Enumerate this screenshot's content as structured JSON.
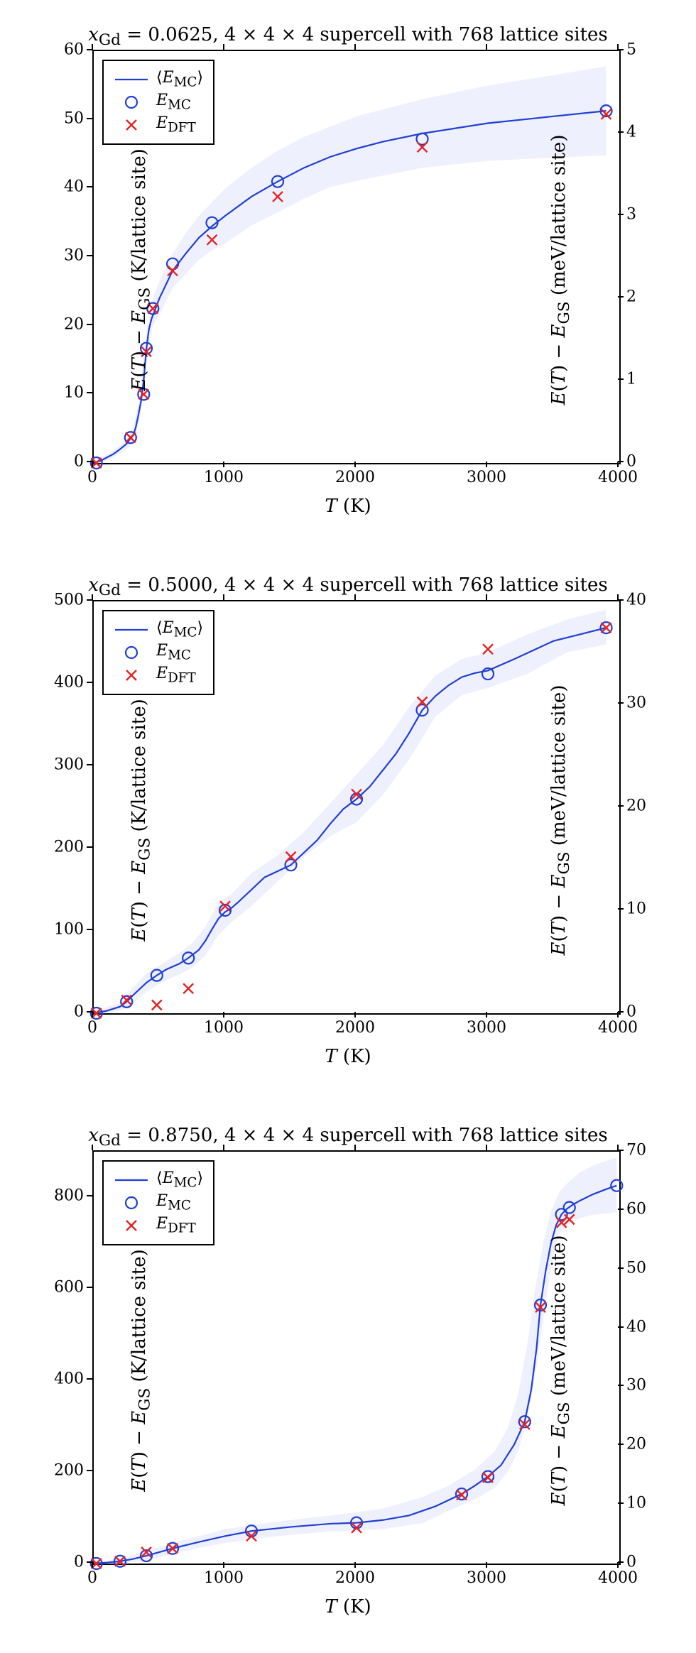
{
  "colors": {
    "line": "#1f3fd6",
    "band": "#b4b9f4",
    "circle": "#1f3fd6",
    "cross": "#e42222",
    "axis": "#000000",
    "bg": "#ffffff"
  },
  "common": {
    "xlabel_html": "<i>T</i> (K)",
    "ylabel_left_html": "<i>E</i>(<i>T</i>) − <i>E</i><sub>GS</sub> (K/lattice site)",
    "ylabel_right_html": "<i>E</i>(<i>T</i>) − <i>E</i><sub>GS</sub> (meV/lattice site)",
    "legend": {
      "l1_html": "⟨<i>E</i><sub>MC</sub>⟩",
      "l2_html": "<i>E</i><sub>MC</sub>",
      "l3_html": "<i>E</i><sub>DFT</sub>"
    },
    "title_fontsize": 26,
    "label_fontsize": 26,
    "tick_fontsize": 22,
    "legend_fontsize": 22,
    "marker_radius": 8,
    "cross_halfsize": 7,
    "line_width": 2.2
  },
  "panels": [
    {
      "id": "p1",
      "title_html": "<i>x</i><sub>Gd</sub> = 0.0625, 4 × 4 × 4 supercell with 768 lattice sites",
      "xlim": [
        0,
        4000
      ],
      "xtick_step": 1000,
      "ylim": [
        0,
        60
      ],
      "ytick_step": 10,
      "y2lim": [
        0,
        5
      ],
      "y2tick_step": 1,
      "line": [
        [
          0,
          0
        ],
        [
          50,
          0.3
        ],
        [
          100,
          0.8
        ],
        [
          150,
          1.3
        ],
        [
          200,
          2.0
        ],
        [
          250,
          2.8
        ],
        [
          280,
          3.6
        ],
        [
          300,
          4.0
        ],
        [
          320,
          5.2
        ],
        [
          340,
          7.0
        ],
        [
          360,
          9.0
        ],
        [
          380,
          12.0
        ],
        [
          400,
          16.5
        ],
        [
          420,
          19.5
        ],
        [
          440,
          21.0
        ],
        [
          460,
          22.0
        ],
        [
          500,
          24.0
        ],
        [
          550,
          26.0
        ],
        [
          600,
          28.0
        ],
        [
          700,
          30.5
        ],
        [
          800,
          32.8
        ],
        [
          900,
          34.5
        ],
        [
          1000,
          36.0
        ],
        [
          1200,
          38.8
        ],
        [
          1400,
          41.0
        ],
        [
          1600,
          43.0
        ],
        [
          1800,
          44.6
        ],
        [
          2000,
          45.8
        ],
        [
          2200,
          46.8
        ],
        [
          2500,
          48.0
        ],
        [
          3000,
          49.5
        ],
        [
          3500,
          50.5
        ],
        [
          3900,
          51.3
        ]
      ],
      "band_hi": [
        [
          0,
          0.2
        ],
        [
          50,
          0.6
        ],
        [
          100,
          1.2
        ],
        [
          150,
          1.8
        ],
        [
          200,
          2.6
        ],
        [
          250,
          3.6
        ],
        [
          300,
          5.2
        ],
        [
          350,
          9.5
        ],
        [
          400,
          18.5
        ],
        [
          450,
          24.0
        ],
        [
          500,
          26.5
        ],
        [
          600,
          30.5
        ],
        [
          700,
          33.5
        ],
        [
          800,
          36.0
        ],
        [
          900,
          38.0
        ],
        [
          1000,
          40.0
        ],
        [
          1200,
          43.0
        ],
        [
          1400,
          45.5
        ],
        [
          1600,
          47.5
        ],
        [
          1800,
          49.0
        ],
        [
          2000,
          50.5
        ],
        [
          2500,
          53.0
        ],
        [
          3000,
          55.0
        ],
        [
          3500,
          56.5
        ],
        [
          3900,
          57.8
        ]
      ],
      "band_lo": [
        [
          0,
          -0.2
        ],
        [
          50,
          0.0
        ],
        [
          100,
          0.4
        ],
        [
          150,
          0.8
        ],
        [
          200,
          1.4
        ],
        [
          250,
          2.0
        ],
        [
          300,
          3.0
        ],
        [
          350,
          6.5
        ],
        [
          400,
          14.5
        ],
        [
          450,
          20.0
        ],
        [
          500,
          21.5
        ],
        [
          600,
          25.5
        ],
        [
          700,
          27.5
        ],
        [
          800,
          29.6
        ],
        [
          900,
          31.0
        ],
        [
          1000,
          32.0
        ],
        [
          1200,
          34.6
        ],
        [
          1400,
          36.5
        ],
        [
          1600,
          38.5
        ],
        [
          1800,
          40.2
        ],
        [
          2000,
          41.1
        ],
        [
          2500,
          43.0
        ],
        [
          3000,
          44.0
        ],
        [
          3500,
          44.5
        ],
        [
          3900,
          44.8
        ]
      ],
      "mc_points": [
        [
          20,
          0.0
        ],
        [
          280,
          3.7
        ],
        [
          380,
          10.0
        ],
        [
          400,
          16.7
        ],
        [
          450,
          22.5
        ],
        [
          600,
          29.0
        ],
        [
          900,
          35.0
        ],
        [
          1400,
          41.0
        ],
        [
          2500,
          47.2
        ],
        [
          3900,
          51.3
        ]
      ],
      "dft_points": [
        [
          20,
          0.0
        ],
        [
          280,
          3.7
        ],
        [
          380,
          10.0
        ],
        [
          400,
          16.2
        ],
        [
          450,
          22.5
        ],
        [
          600,
          28.0
        ],
        [
          900,
          32.5
        ],
        [
          1400,
          38.8
        ],
        [
          2500,
          46.0
        ],
        [
          3900,
          50.8
        ]
      ]
    },
    {
      "id": "p2",
      "title_html": "<i>x</i><sub>Gd</sub> = 0.5000, 4 × 4 × 4 supercell with 768 lattice sites",
      "xlim": [
        0,
        4000
      ],
      "xtick_step": 1000,
      "ylim": [
        0,
        500
      ],
      "ytick_step": 100,
      "y2lim": [
        0,
        40
      ],
      "y2tick_step": 10,
      "line": [
        [
          0,
          0
        ],
        [
          100,
          3
        ],
        [
          200,
          8
        ],
        [
          250,
          14
        ],
        [
          300,
          22
        ],
        [
          400,
          37
        ],
        [
          480,
          46
        ],
        [
          550,
          53
        ],
        [
          650,
          60
        ],
        [
          720,
          67
        ],
        [
          800,
          77
        ],
        [
          850,
          88
        ],
        [
          900,
          102
        ],
        [
          950,
          115
        ],
        [
          1000,
          123
        ],
        [
          1050,
          128
        ],
        [
          1100,
          135
        ],
        [
          1200,
          150
        ],
        [
          1300,
          165
        ],
        [
          1500,
          180
        ],
        [
          1700,
          210
        ],
        [
          1800,
          230
        ],
        [
          1900,
          248
        ],
        [
          2000,
          260
        ],
        [
          2100,
          275
        ],
        [
          2200,
          295
        ],
        [
          2300,
          315
        ],
        [
          2400,
          340
        ],
        [
          2500,
          368
        ],
        [
          2600,
          385
        ],
        [
          2700,
          398
        ],
        [
          2800,
          408
        ],
        [
          2900,
          413
        ],
        [
          3000,
          416
        ],
        [
          3200,
          430
        ],
        [
          3500,
          452
        ],
        [
          3700,
          460
        ],
        [
          3900,
          468
        ]
      ],
      "band_hi": [
        [
          0,
          2
        ],
        [
          200,
          13
        ],
        [
          300,
          32
        ],
        [
          400,
          48
        ],
        [
          500,
          58
        ],
        [
          650,
          73
        ],
        [
          750,
          85
        ],
        [
          850,
          105
        ],
        [
          950,
          135
        ],
        [
          1050,
          145
        ],
        [
          1200,
          170
        ],
        [
          1400,
          192
        ],
        [
          1600,
          220
        ],
        [
          1800,
          255
        ],
        [
          2000,
          290
        ],
        [
          2200,
          325
        ],
        [
          2400,
          372
        ],
        [
          2600,
          410
        ],
        [
          2800,
          430
        ],
        [
          3000,
          438
        ],
        [
          3300,
          460
        ],
        [
          3600,
          478
        ],
        [
          3900,
          490
        ]
      ],
      "band_lo": [
        [
          0,
          -2
        ],
        [
          200,
          3
        ],
        [
          300,
          12
        ],
        [
          400,
          26
        ],
        [
          500,
          36
        ],
        [
          650,
          47
        ],
        [
          750,
          55
        ],
        [
          850,
          70
        ],
        [
          950,
          95
        ],
        [
          1050,
          111
        ],
        [
          1200,
          130
        ],
        [
          1400,
          160
        ],
        [
          1600,
          190
        ],
        [
          1800,
          215
        ],
        [
          2000,
          232
        ],
        [
          2200,
          265
        ],
        [
          2400,
          308
        ],
        [
          2600,
          360
        ],
        [
          2800,
          386
        ],
        [
          3000,
          395
        ],
        [
          3300,
          412
        ],
        [
          3600,
          438
        ],
        [
          3900,
          448
        ]
      ],
      "mc_points": [
        [
          20,
          0
        ],
        [
          250,
          14
        ],
        [
          480,
          46
        ],
        [
          720,
          67
        ],
        [
          1000,
          125
        ],
        [
          1500,
          180
        ],
        [
          2000,
          260
        ],
        [
          2500,
          368
        ],
        [
          3000,
          412
        ],
        [
          3900,
          468
        ]
      ],
      "dft_points": [
        [
          20,
          0
        ],
        [
          250,
          16
        ],
        [
          480,
          10
        ],
        [
          720,
          30
        ],
        [
          1000,
          130
        ],
        [
          1500,
          190
        ],
        [
          2000,
          266
        ],
        [
          2500,
          378
        ],
        [
          3000,
          442
        ],
        [
          3900,
          468
        ]
      ]
    },
    {
      "id": "p3",
      "title_html": "<i>x</i><sub>Gd</sub> = 0.8750, 4 × 4 × 4 supercell with 768 lattice sites",
      "xlim": [
        0,
        4000
      ],
      "xtick_step": 1000,
      "ylim": [
        0,
        900
      ],
      "ytick_step": 200,
      "y2lim": [
        0,
        70
      ],
      "y2tick_step": 10,
      "line": [
        [
          0,
          0
        ],
        [
          100,
          2
        ],
        [
          200,
          5
        ],
        [
          300,
          10
        ],
        [
          400,
          17
        ],
        [
          500,
          25
        ],
        [
          600,
          33
        ],
        [
          800,
          47
        ],
        [
          1000,
          60
        ],
        [
          1200,
          71
        ],
        [
          1500,
          80
        ],
        [
          1800,
          87
        ],
        [
          2000,
          89
        ],
        [
          2200,
          95
        ],
        [
          2400,
          105
        ],
        [
          2600,
          125
        ],
        [
          2800,
          152
        ],
        [
          2900,
          170
        ],
        [
          3000,
          190
        ],
        [
          3100,
          215
        ],
        [
          3200,
          260
        ],
        [
          3280,
          310
        ],
        [
          3330,
          380
        ],
        [
          3370,
          470
        ],
        [
          3400,
          565
        ],
        [
          3440,
          640
        ],
        [
          3480,
          700
        ],
        [
          3520,
          740
        ],
        [
          3560,
          763
        ],
        [
          3600,
          775
        ],
        [
          3650,
          785
        ],
        [
          3700,
          793
        ],
        [
          3800,
          807
        ],
        [
          3900,
          818
        ],
        [
          3980,
          826
        ]
      ],
      "band_hi": [
        [
          0,
          3
        ],
        [
          200,
          10
        ],
        [
          400,
          28
        ],
        [
          600,
          45
        ],
        [
          800,
          60
        ],
        [
          1000,
          75
        ],
        [
          1400,
          92
        ],
        [
          1800,
          105
        ],
        [
          2200,
          120
        ],
        [
          2500,
          145
        ],
        [
          2700,
          170
        ],
        [
          2900,
          205
        ],
        [
          3050,
          245
        ],
        [
          3150,
          295
        ],
        [
          3230,
          370
        ],
        [
          3300,
          480
        ],
        [
          3360,
          600
        ],
        [
          3420,
          700
        ],
        [
          3480,
          770
        ],
        [
          3540,
          810
        ],
        [
          3600,
          830
        ],
        [
          3700,
          855
        ],
        [
          3800,
          870
        ],
        [
          3900,
          880
        ],
        [
          3980,
          888
        ]
      ],
      "band_lo": [
        [
          0,
          -3
        ],
        [
          200,
          0
        ],
        [
          400,
          7
        ],
        [
          600,
          21
        ],
        [
          800,
          34
        ],
        [
          1000,
          45
        ],
        [
          1400,
          60
        ],
        [
          1800,
          70
        ],
        [
          2200,
          75
        ],
        [
          2500,
          88
        ],
        [
          2700,
          115
        ],
        [
          2900,
          140
        ],
        [
          3050,
          165
        ],
        [
          3150,
          200
        ],
        [
          3230,
          245
        ],
        [
          3300,
          320
        ],
        [
          3360,
          410
        ],
        [
          3420,
          530
        ],
        [
          3480,
          650
        ],
        [
          3540,
          720
        ],
        [
          3600,
          740
        ],
        [
          3700,
          755
        ],
        [
          3800,
          762
        ],
        [
          3900,
          765
        ],
        [
          3980,
          768
        ]
      ],
      "mc_points": [
        [
          20,
          0
        ],
        [
          200,
          5
        ],
        [
          400,
          17
        ],
        [
          600,
          33
        ],
        [
          1200,
          71
        ],
        [
          2000,
          89
        ],
        [
          2800,
          152
        ],
        [
          3000,
          190
        ],
        [
          3280,
          310
        ],
        [
          3400,
          565
        ],
        [
          3560,
          763
        ],
        [
          3620,
          778
        ],
        [
          3980,
          826
        ]
      ],
      "dft_points": [
        [
          20,
          0
        ],
        [
          200,
          5
        ],
        [
          400,
          25
        ],
        [
          600,
          33
        ],
        [
          1200,
          60
        ],
        [
          2000,
          78
        ],
        [
          2800,
          150
        ],
        [
          3000,
          188
        ],
        [
          3280,
          304
        ],
        [
          3400,
          560
        ],
        [
          3560,
          745
        ],
        [
          3620,
          752
        ]
      ]
    }
  ]
}
